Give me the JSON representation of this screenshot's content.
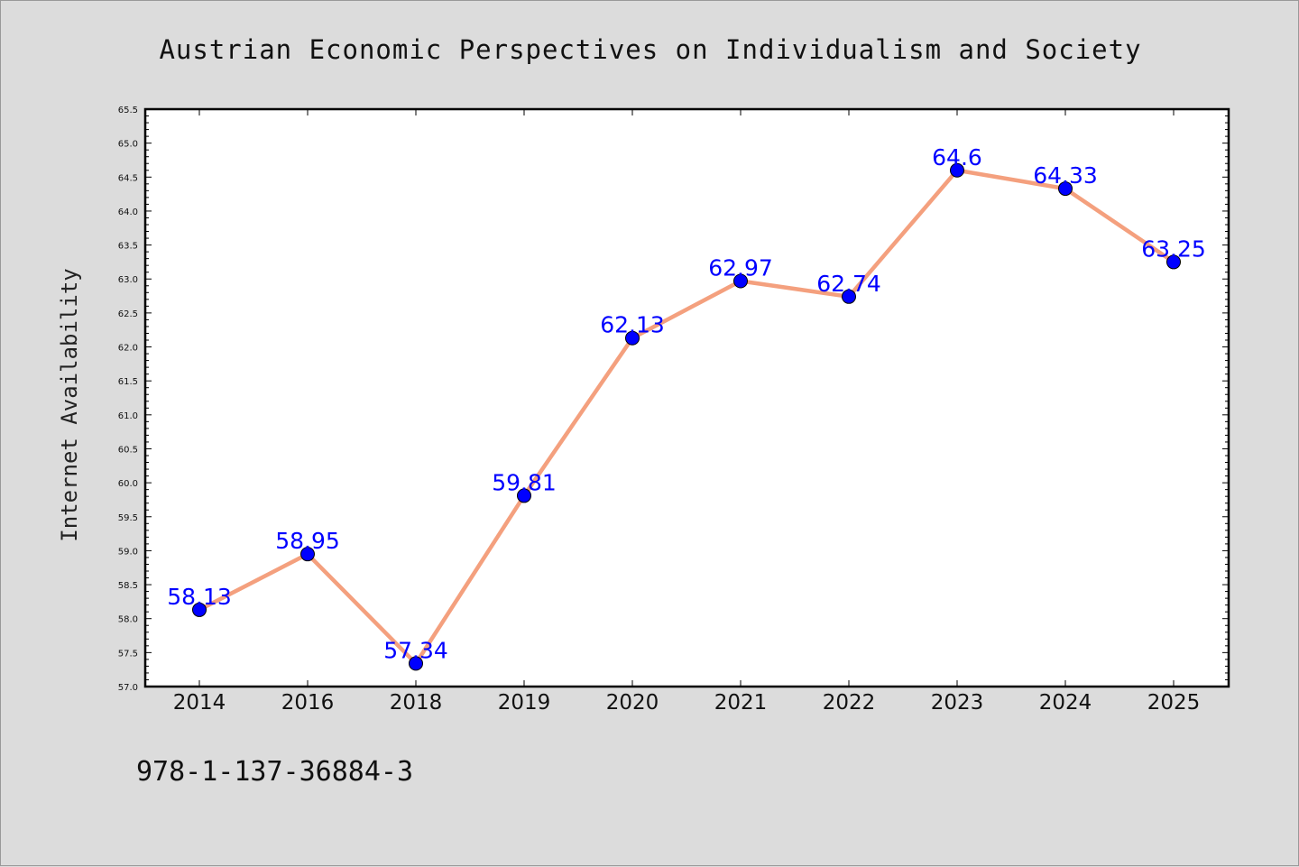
{
  "chart_data": {
    "type": "line",
    "title": "Austrian Economic Perspectives on Individualism and Society",
    "xlabel": "",
    "ylabel": "Internet Availability",
    "categories": [
      "2014",
      "2016",
      "2018",
      "2019",
      "2020",
      "2021",
      "2022",
      "2023",
      "2024",
      "2025"
    ],
    "series": [
      {
        "values": [
          58.13,
          58.95,
          57.34,
          59.81,
          62.13,
          62.97,
          62.74,
          64.6,
          64.33,
          63.25
        ],
        "labels": [
          "58.13",
          "58.95",
          "57.34",
          "59.81",
          "62.13",
          "62.97",
          "62.74",
          "64.6",
          "64.33",
          "63.25"
        ]
      }
    ],
    "ylim": [
      57.0,
      65.5
    ],
    "ytick_step": 0.5,
    "grid": false,
    "legend": "none",
    "line_color": "#f4a07e",
    "marker_color": "#0000ff",
    "label_color": "#0000ff"
  },
  "footer_text": "978-1-137-36884-3"
}
